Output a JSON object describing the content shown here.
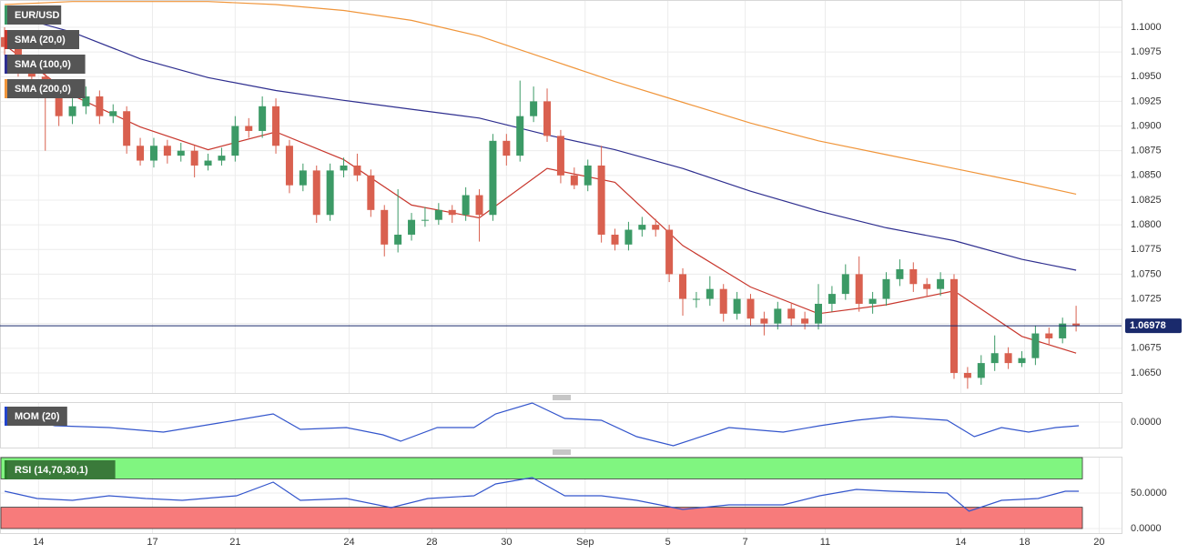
{
  "chart_data": [
    {
      "type": "candlestick",
      "title": "EUR/USD",
      "up_color": "#3c9a66",
      "down_color": "#d9604f",
      "xlim": [
        -0.34,
        82.35
      ],
      "xticks": [
        {
          "value": 2.5,
          "label": "14"
        },
        {
          "value": 10.9,
          "label": "17"
        },
        {
          "value": 17,
          "label": "21"
        },
        {
          "value": 25.4,
          "label": "24"
        },
        {
          "value": 31.5,
          "label": "28"
        },
        {
          "value": 37,
          "label": "30"
        },
        {
          "value": 42.8,
          "label": "Sep"
        },
        {
          "value": 48.9,
          "label": "5"
        },
        {
          "value": 54.6,
          "label": "7"
        },
        {
          "value": 60.5,
          "label": "11"
        },
        {
          "value": 70.5,
          "label": "14"
        },
        {
          "value": 75.2,
          "label": "18"
        },
        {
          "value": 80.7,
          "label": "20"
        }
      ],
      "ylim": [
        1.06297,
        1.10276
      ],
      "yticks": [
        {
          "value": 1.1,
          "label": "1.1000"
        },
        1.0975,
        {
          "value": 1.095,
          "label": "1.0950"
        },
        1.0925,
        {
          "value": 1.09,
          "label": "1.0900"
        },
        1.0875,
        {
          "value": 1.085,
          "label": "1.0850"
        },
        1.0825,
        {
          "value": 1.08,
          "label": "1.0800"
        },
        1.0775,
        {
          "value": 1.075,
          "label": "1.0750"
        },
        1.0725,
        {
          "value": 1.07,
          "label": "1.0700"
        },
        1.0675,
        {
          "value": 1.065,
          "label": "1.0650"
        }
      ],
      "grid": true,
      "last_price": 1.06978,
      "last_price_color": "#1a2a6c",
      "candles": [
        [
          1.099,
          1.1,
          1.0972,
          1.098
        ],
        [
          1.098,
          1.0988,
          1.095,
          1.096
        ],
        [
          1.096,
          1.0968,
          1.0942,
          1.095
        ],
        [
          1.095,
          1.0958,
          1.0875,
          1.093
        ],
        [
          1.093,
          1.0938,
          1.09,
          1.091
        ],
        [
          1.091,
          1.0928,
          1.0902,
          1.092
        ],
        [
          1.092,
          1.094,
          1.0912,
          1.093
        ],
        [
          1.093,
          1.0936,
          1.0902,
          1.091
        ],
        [
          1.091,
          1.0922,
          1.0903,
          1.0915
        ],
        [
          1.0915,
          1.092,
          1.0872,
          1.088
        ],
        [
          1.088,
          1.0888,
          1.086,
          1.0865
        ],
        [
          1.0865,
          1.0888,
          1.0858,
          1.088
        ],
        [
          1.088,
          1.0886,
          1.0862,
          1.087
        ],
        [
          1.087,
          1.0883,
          1.0864,
          1.0875
        ],
        [
          1.0875,
          1.088,
          1.0848,
          1.086
        ],
        [
          1.086,
          1.0872,
          1.0855,
          1.0865
        ],
        [
          1.0865,
          1.0878,
          1.086,
          1.087
        ],
        [
          1.087,
          1.091,
          1.0864,
          1.09
        ],
        [
          1.09,
          1.0908,
          1.0888,
          1.0895
        ],
        [
          1.0895,
          1.093,
          1.0888,
          1.092
        ],
        [
          1.092,
          1.0928,
          1.0872,
          1.088
        ],
        [
          1.088,
          1.0886,
          1.0832,
          1.084
        ],
        [
          1.084,
          1.0862,
          1.0834,
          1.0855
        ],
        [
          1.0855,
          1.086,
          1.0802,
          1.081
        ],
        [
          1.081,
          1.0862,
          1.0804,
          1.0855
        ],
        [
          1.0855,
          1.0868,
          1.0848,
          1.086
        ],
        [
          1.086,
          1.0872,
          1.0844,
          1.085
        ],
        [
          1.085,
          1.0856,
          1.0808,
          1.0815
        ],
        [
          1.0815,
          1.082,
          1.0768,
          1.078
        ],
        [
          1.078,
          1.0836,
          1.0772,
          1.079
        ],
        [
          1.079,
          1.0812,
          1.0784,
          1.0805
        ],
        [
          1.0805,
          1.0818,
          1.0798,
          1.0805
        ],
        [
          1.0805,
          1.0822,
          1.08,
          1.0815
        ],
        [
          1.0815,
          1.082,
          1.0802,
          1.081
        ],
        [
          1.081,
          1.0838,
          1.0804,
          1.083
        ],
        [
          1.083,
          1.0836,
          1.0783,
          1.081
        ],
        [
          1.081,
          1.0892,
          1.0804,
          1.0885
        ],
        [
          1.0885,
          1.0892,
          1.086,
          1.087
        ],
        [
          1.087,
          1.0946,
          1.0864,
          1.091
        ],
        [
          1.091,
          1.094,
          1.0904,
          1.0925
        ],
        [
          1.0925,
          1.0938,
          1.0884,
          1.089
        ],
        [
          1.089,
          1.0896,
          1.0842,
          1.085
        ],
        [
          1.085,
          1.0858,
          1.0836,
          1.084
        ],
        [
          1.084,
          1.0866,
          1.0834,
          1.086
        ],
        [
          1.086,
          1.088,
          1.0782,
          1.079
        ],
        [
          1.079,
          1.0796,
          1.0774,
          1.078
        ],
        [
          1.078,
          1.0803,
          1.0774,
          1.0795
        ],
        [
          1.0795,
          1.0808,
          1.0788,
          1.08
        ],
        [
          1.08,
          1.0806,
          1.0788,
          1.0795
        ],
        [
          1.0795,
          1.08,
          1.0742,
          1.075
        ],
        [
          1.075,
          1.0756,
          1.0708,
          1.0725
        ],
        [
          1.0725,
          1.0732,
          1.0716,
          1.0725
        ],
        [
          1.0725,
          1.0748,
          1.0718,
          1.0735
        ],
        [
          1.0735,
          1.074,
          1.0702,
          1.071
        ],
        [
          1.071,
          1.0732,
          1.0704,
          1.0725
        ],
        [
          1.0725,
          1.073,
          1.0698,
          1.0705
        ],
        [
          1.0705,
          1.0712,
          1.0688,
          1.07
        ],
        [
          1.07,
          1.0722,
          1.0694,
          1.0715
        ],
        [
          1.0715,
          1.072,
          1.0698,
          1.0705
        ],
        [
          1.0705,
          1.0712,
          1.0694,
          1.07
        ],
        [
          1.07,
          1.074,
          1.0694,
          1.072
        ],
        [
          1.072,
          1.0738,
          1.0712,
          1.073
        ],
        [
          1.073,
          1.076,
          1.0724,
          1.075
        ],
        [
          1.075,
          1.0768,
          1.0712,
          1.072
        ],
        [
          1.072,
          1.0732,
          1.071,
          1.0725
        ],
        [
          1.0725,
          1.0752,
          1.0718,
          1.0745
        ],
        [
          1.0745,
          1.0765,
          1.0738,
          1.0755
        ],
        [
          1.0755,
          1.0762,
          1.0732,
          1.074
        ],
        [
          1.074,
          1.0746,
          1.0728,
          1.0735
        ],
        [
          1.0735,
          1.0752,
          1.0728,
          1.0745
        ],
        [
          1.0745,
          1.075,
          1.0644,
          1.065
        ],
        [
          1.065,
          1.0656,
          1.0634,
          1.0645
        ],
        [
          1.0645,
          1.0668,
          1.0638,
          1.066
        ],
        [
          1.066,
          1.0688,
          1.0652,
          1.067
        ],
        [
          1.067,
          1.0676,
          1.0654,
          1.066
        ],
        [
          1.066,
          1.0672,
          1.0656,
          1.0665
        ],
        [
          1.0665,
          1.0698,
          1.0658,
          1.069
        ],
        [
          1.069,
          1.0696,
          1.0678,
          1.0685
        ],
        [
          1.0685,
          1.0706,
          1.068,
          1.07
        ],
        [
          1.07,
          1.0718,
          1.0692,
          1.0698
        ]
      ],
      "series": [
        {
          "name": "SMA (20,0)",
          "color": "#c8372d",
          "x": [
            0,
            5,
            10,
            15,
            20,
            25,
            30,
            35,
            40,
            45,
            50,
            55,
            60,
            65,
            70,
            75,
            79
          ],
          "values": [
            1.0982,
            1.0931,
            1.0899,
            1.0876,
            1.0894,
            1.0866,
            1.082,
            1.0807,
            1.0857,
            1.0843,
            1.0779,
            1.0737,
            1.071,
            1.0719,
            1.0733,
            1.0687,
            1.067
          ]
        },
        {
          "name": "SMA (100,0)",
          "color": "#2e2e8f",
          "x": [
            0,
            5,
            10,
            15,
            20,
            25,
            30,
            35,
            40,
            45,
            50,
            55,
            60,
            65,
            70,
            75,
            79
          ],
          "values": [
            1.1014,
            1.0995,
            1.0968,
            1.0949,
            1.0936,
            1.0926,
            1.0917,
            1.0908,
            1.0891,
            1.0876,
            1.0857,
            1.0834,
            1.0814,
            1.0797,
            1.0784,
            1.0765,
            1.0754
          ]
        },
        {
          "name": "SMA (200,0)",
          "color": "#f0953a",
          "x": [
            0,
            5,
            10,
            15,
            20,
            25,
            30,
            35,
            40,
            45,
            50,
            55,
            60,
            65,
            70,
            75,
            79
          ],
          "values": [
            1.1023,
            1.1026,
            1.1026,
            1.1026,
            1.1023,
            1.1017,
            1.1007,
            1.0991,
            1.0968,
            1.0945,
            1.0924,
            1.0903,
            1.0885,
            1.0871,
            1.0857,
            1.0843,
            1.0831
          ]
        }
      ]
    },
    {
      "type": "line",
      "ylim": [
        -0.0056,
        0.0044
      ],
      "yticks": [
        {
          "value": 0,
          "label": "0.0000"
        }
      ],
      "label_color": "#2244cc",
      "series": [
        {
          "name": "MOM (20)",
          "color": "#3355cc",
          "x": [
            0,
            3.7,
            7.7,
            11.7,
            15.8,
            19.8,
            21.8,
            25.2,
            27.9,
            29.2,
            31.9,
            34.6,
            36.2,
            38.9,
            41.3,
            44,
            46.6,
            49.3,
            53.4,
            57.4,
            60.1,
            62.8,
            65.4,
            69.5,
            71.5,
            73.5,
            75.5,
            77.5,
            79.2
          ],
          "values": [
            0.0018,
            -0.0008,
            -0.0012,
            -0.0022,
            -0.0002,
            0.0018,
            -0.0016,
            -0.0012,
            -0.0028,
            -0.0042,
            -0.0012,
            -0.0012,
            0.0018,
            0.0042,
            0.0008,
            0.0004,
            -0.0032,
            -0.0052,
            -0.0012,
            -0.0022,
            -0.0008,
            0.0004,
            0.0012,
            0.0004,
            -0.0032,
            -0.0012,
            -0.0022,
            -0.0012,
            -0.0008
          ]
        }
      ]
    },
    {
      "type": "line",
      "ylim": [
        -6.4,
        101.3
      ],
      "yticks": [
        {
          "value": 50,
          "label": "50.0000"
        },
        {
          "value": 0,
          "label": "0.0000"
        }
      ],
      "label_color": "#2a7a2a",
      "upper_band": [
        70,
        100
      ],
      "lower_band": [
        0,
        30
      ],
      "upper_color": "#80f580",
      "lower_color": "#f77b7b",
      "series": [
        {
          "name": "RSI (14,70,30,1)",
          "color": "#3355cc",
          "x": [
            0,
            2.4,
            5,
            7.7,
            10.4,
            13.1,
            17.1,
            19.8,
            21.8,
            25.2,
            28.5,
            31.2,
            34.6,
            36.2,
            38.9,
            41.3,
            44,
            46.6,
            50,
            53.4,
            57.4,
            60.1,
            62.8,
            65.4,
            69.5,
            71.1,
            73.5,
            76.2,
            78.2,
            79.2
          ],
          "values": [
            52.6,
            42.3,
            39.7,
            46.2,
            42.3,
            39.7,
            46.2,
            65.4,
            39.7,
            42.3,
            29.5,
            42.3,
            46.2,
            62.8,
            71.8,
            46.2,
            46.2,
            39.7,
            26.9,
            33.3,
            33.3,
            46.2,
            55.1,
            52.6,
            50,
            24.4,
            39.7,
            42.3,
            52.6,
            52.6
          ]
        }
      ]
    }
  ]
}
